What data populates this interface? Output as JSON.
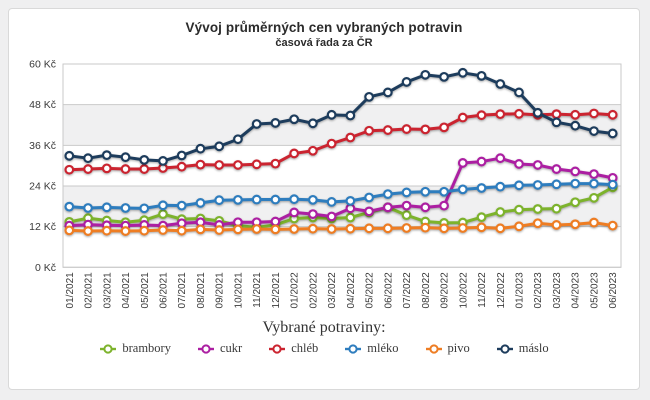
{
  "chart": {
    "title": "Vývoj průměrných cen vybraných potravin",
    "subtitle": "časová řada za ČR",
    "legend_title": "Vybrané potraviny:"
  },
  "chart_data": {
    "type": "line",
    "title": "Vývoj průměrných cen vybraných potravin",
    "subtitle": "časová řada za ČR",
    "legend_title": "Vybrané potraviny:",
    "legend_position": "bottom",
    "grid": true,
    "ylim": [
      0,
      60
    ],
    "y_unit": "Kč",
    "y_ticks": [
      0,
      12,
      24,
      36,
      48,
      60
    ],
    "y_tick_labels": [
      "0 Kč",
      "12 Kč",
      "24 Kč",
      "36 Kč",
      "48 Kč",
      "60 Kč"
    ],
    "x": [
      "01/2021",
      "02/2021",
      "03/2021",
      "04/2021",
      "05/2021",
      "06/2021",
      "07/2021",
      "08/2021",
      "09/2021",
      "10/2021",
      "11/2021",
      "12/2021",
      "01/2022",
      "02/2022",
      "03/2022",
      "04/2022",
      "05/2022",
      "06/2022",
      "07/2022",
      "08/2022",
      "09/2022",
      "10/2022",
      "11/2022",
      "12/2022",
      "01/2023",
      "02/2023",
      "03/2023",
      "04/2023",
      "05/2023",
      "06/2023"
    ],
    "series": [
      {
        "name": "brambory",
        "color": "#7db32c",
        "values": [
          13.4,
          14.5,
          13.8,
          13.3,
          13.9,
          15.7,
          14.2,
          14.4,
          13.7,
          12.3,
          11.8,
          12.5,
          14.4,
          14.7,
          14.4,
          14.7,
          16.2,
          17.7,
          15.4,
          13.5,
          13.1,
          13.2,
          14.8,
          16.3,
          17.0,
          17.2,
          17.3,
          19.2,
          20.5,
          23.6
        ]
      },
      {
        "name": "cukr",
        "color": "#ac1fa2",
        "values": [
          12.3,
          12.6,
          12.4,
          12.3,
          12.5,
          12.3,
          13.0,
          13.3,
          12.5,
          13.3,
          13.3,
          13.5,
          16.2,
          15.7,
          15.0,
          17.4,
          16.5,
          17.7,
          18.2,
          17.7,
          18.2,
          30.8,
          31.2,
          32.2,
          30.5,
          30.2,
          29.0,
          28.3,
          27.5,
          26.4
        ]
      },
      {
        "name": "chléb",
        "color": "#cb2430",
        "values": [
          28.8,
          29.0,
          29.2,
          29.0,
          29.0,
          29.3,
          29.7,
          30.3,
          30.2,
          30.2,
          30.4,
          30.6,
          33.6,
          34.4,
          36.5,
          38.3,
          40.3,
          40.5,
          40.8,
          40.7,
          41.3,
          44.2,
          44.9,
          45.2,
          45.3,
          45.0,
          45.2,
          45.0,
          45.4,
          45.0
        ]
      },
      {
        "name": "mléko",
        "color": "#2e7dbe",
        "values": [
          17.9,
          17.5,
          17.7,
          17.5,
          17.4,
          18.3,
          18.2,
          19.0,
          19.8,
          19.9,
          20.0,
          20.0,
          20.1,
          19.9,
          19.3,
          19.6,
          20.6,
          21.6,
          22.1,
          22.3,
          22.3,
          23.0,
          23.4,
          23.8,
          24.2,
          24.3,
          24.5,
          24.7,
          24.7,
          24.4
        ]
      },
      {
        "name": "pivo",
        "color": "#ee7d23",
        "values": [
          10.9,
          10.7,
          10.8,
          10.7,
          10.8,
          11.0,
          10.8,
          11.2,
          11.0,
          11.2,
          11.3,
          11.2,
          11.3,
          11.4,
          11.3,
          11.4,
          11.5,
          11.5,
          11.6,
          11.7,
          11.5,
          11.6,
          11.8,
          11.5,
          12.1,
          13.0,
          12.5,
          12.7,
          13.2,
          12.3
        ]
      },
      {
        "name": "máslo",
        "color": "#1d3c5c",
        "values": [
          32.9,
          32.2,
          33.1,
          32.5,
          31.7,
          31.4,
          33.0,
          35.0,
          35.7,
          37.8,
          42.3,
          42.6,
          43.7,
          42.5,
          45.0,
          44.8,
          50.3,
          51.6,
          54.7,
          56.8,
          56.2,
          57.4,
          56.5,
          54.1,
          51.6,
          45.6,
          42.8,
          41.8,
          40.2,
          39.5
        ]
      }
    ],
    "colors": {
      "band_fill": "#f0f0f1",
      "gridline": "#c9c9c9",
      "axis_text": "#3a3a3a"
    }
  }
}
